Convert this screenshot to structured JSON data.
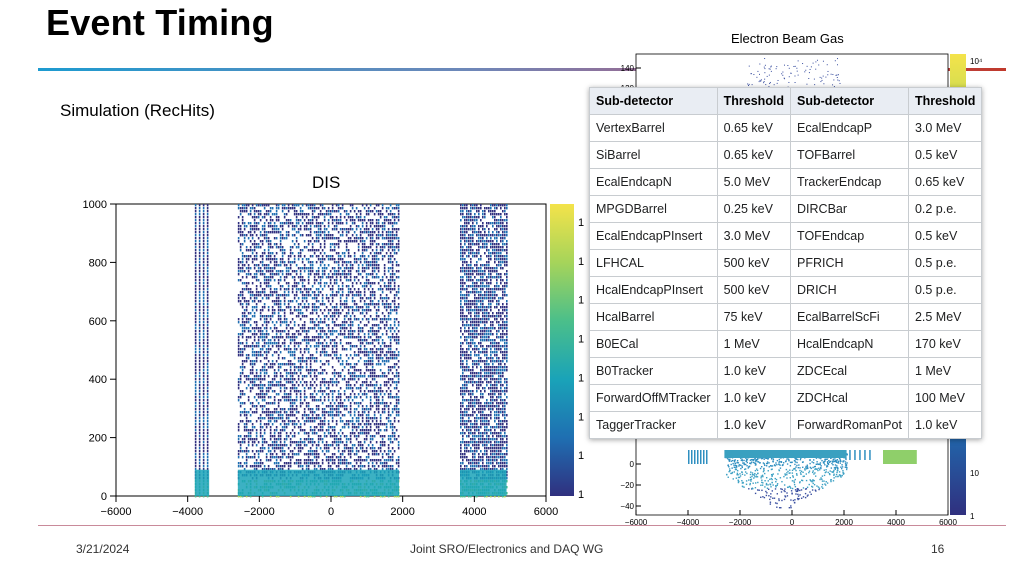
{
  "slide": {
    "title": "Event Timing",
    "subtitle": "Simulation (RecHits)",
    "dis_label": "DIS",
    "ebg_label": "Electron Beam Gas",
    "footer": {
      "date": "3/21/2024",
      "center": "Joint SRO/Electronics and DAQ WG",
      "page": "16"
    }
  },
  "table": {
    "headers": [
      "Sub-detector",
      "Threshold",
      "Sub-detector",
      "Threshold"
    ],
    "rows": [
      [
        "VertexBarrel",
        "0.65 keV",
        "EcalEndcapP",
        "3.0 MeV"
      ],
      [
        "SiBarrel",
        "0.65 keV",
        "TOFBarrel",
        "0.5 keV"
      ],
      [
        "EcalEndcapN",
        "5.0 MeV",
        "TrackerEndcap",
        "0.65 keV"
      ],
      [
        "MPGDBarrel",
        "0.25 keV",
        "DIRCBar",
        "0.2 p.e."
      ],
      [
        "EcalEndcapPInsert",
        "3.0 MeV",
        "TOFEndcap",
        "0.5 keV"
      ],
      [
        "LFHCAL",
        "500 keV",
        "PFRICH",
        "0.5 p.e."
      ],
      [
        "HcalEndcapPInsert",
        "500 keV",
        "DRICH",
        "0.5 p.e."
      ],
      [
        "HcalBarrel",
        "75 keV",
        "EcalBarrelScFi",
        "2.5 MeV"
      ],
      [
        "B0ECal",
        "1 MeV",
        "HcalEndcapN",
        "170 keV"
      ],
      [
        "B0Tracker",
        "1.0 keV",
        "ZDCEcal",
        "1 MeV"
      ],
      [
        "ForwardOffMTracker",
        "1.0 keV",
        "ZDCHcal",
        "100 MeV"
      ],
      [
        "TaggerTracker",
        "1.0 keV",
        "ForwardRomanPot",
        "1.0 keV"
      ]
    ]
  },
  "chart_data": [
    {
      "type": "heatmap",
      "title": "DIS",
      "xlim": [
        -6000,
        6000
      ],
      "ylim": [
        0,
        1000
      ],
      "x_ticks": [
        "−6000",
        "−4000",
        "−2000",
        "0",
        "2000",
        "4000",
        "6000"
      ],
      "y_ticks": [
        "0",
        "200",
        "400",
        "600",
        "800",
        "1000"
      ],
      "colorbar_ticks": [
        "1",
        "1",
        "1",
        "1",
        "1",
        "1",
        "1",
        "1"
      ],
      "bands_x": [
        [
          -3800,
          -3400
        ],
        [
          -2600,
          1900
        ],
        [
          3600,
          4900
        ]
      ],
      "colorscale": [
        "#30307f",
        "#1f6fb2",
        "#1aa3b8",
        "#4bbf8a",
        "#a6d45a",
        "#f4e34a"
      ]
    },
    {
      "type": "heatmap",
      "title": "Electron Beam Gas",
      "xlim": [
        -6000,
        6000
      ],
      "x_ticks": [
        "−6000",
        "−4000",
        "−2000",
        "0",
        "2000",
        "4000",
        "6000"
      ],
      "y_ticks_top": [
        "140",
        "120"
      ],
      "y_ticks_bottom": [
        "0",
        "−20",
        "−40"
      ],
      "colorbar_ticks": [
        "10⁴",
        "10",
        "1"
      ]
    }
  ]
}
